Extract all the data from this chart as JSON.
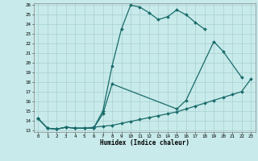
{
  "xlabel": "Humidex (Indice chaleur)",
  "bg_color": "#c8eaea",
  "line_color": "#1a6b6b",
  "grid_color": "#a8d0d0",
  "ylim": [
    13,
    26
  ],
  "xlim": [
    -0.5,
    23.5
  ],
  "yticks": [
    13,
    14,
    15,
    16,
    17,
    18,
    19,
    20,
    21,
    22,
    23,
    24,
    25,
    26
  ],
  "xticks": [
    0,
    1,
    2,
    3,
    4,
    5,
    6,
    7,
    8,
    9,
    10,
    11,
    12,
    13,
    14,
    15,
    16,
    17,
    18,
    19,
    20,
    21,
    22,
    23
  ],
  "line1_x": [
    0,
    1,
    2,
    3,
    4,
    5,
    6,
    7,
    8,
    9,
    10,
    11,
    12,
    13,
    14,
    15,
    16,
    17,
    18
  ],
  "line1_y": [
    14.2,
    13.2,
    13.1,
    13.3,
    13.2,
    13.2,
    13.2,
    15.0,
    19.7,
    23.5,
    26.0,
    25.8,
    25.2,
    24.5,
    24.8,
    25.5,
    25.0,
    24.2,
    23.5
  ],
  "line2_x": [
    0,
    1,
    2,
    3,
    4,
    5,
    6,
    7,
    8,
    15,
    16,
    19,
    20,
    22
  ],
  "line2_y": [
    14.2,
    13.2,
    13.1,
    13.3,
    13.2,
    13.2,
    13.2,
    14.7,
    17.8,
    15.2,
    16.1,
    22.2,
    21.2,
    18.5
  ],
  "line3_x": [
    0,
    1,
    2,
    3,
    4,
    5,
    6,
    7,
    8,
    9,
    10,
    11,
    12,
    13,
    14,
    15,
    16,
    17,
    18,
    19,
    20,
    21,
    22,
    23
  ],
  "line3_y": [
    14.2,
    13.2,
    13.1,
    13.3,
    13.2,
    13.2,
    13.3,
    13.4,
    13.5,
    13.7,
    13.9,
    14.1,
    14.3,
    14.5,
    14.7,
    14.9,
    15.2,
    15.5,
    15.8,
    16.1,
    16.4,
    16.7,
    17.0,
    18.3
  ],
  "marker_size": 2.0,
  "line_width": 0.9,
  "tick_fontsize": 4.2,
  "label_fontsize": 5.5
}
